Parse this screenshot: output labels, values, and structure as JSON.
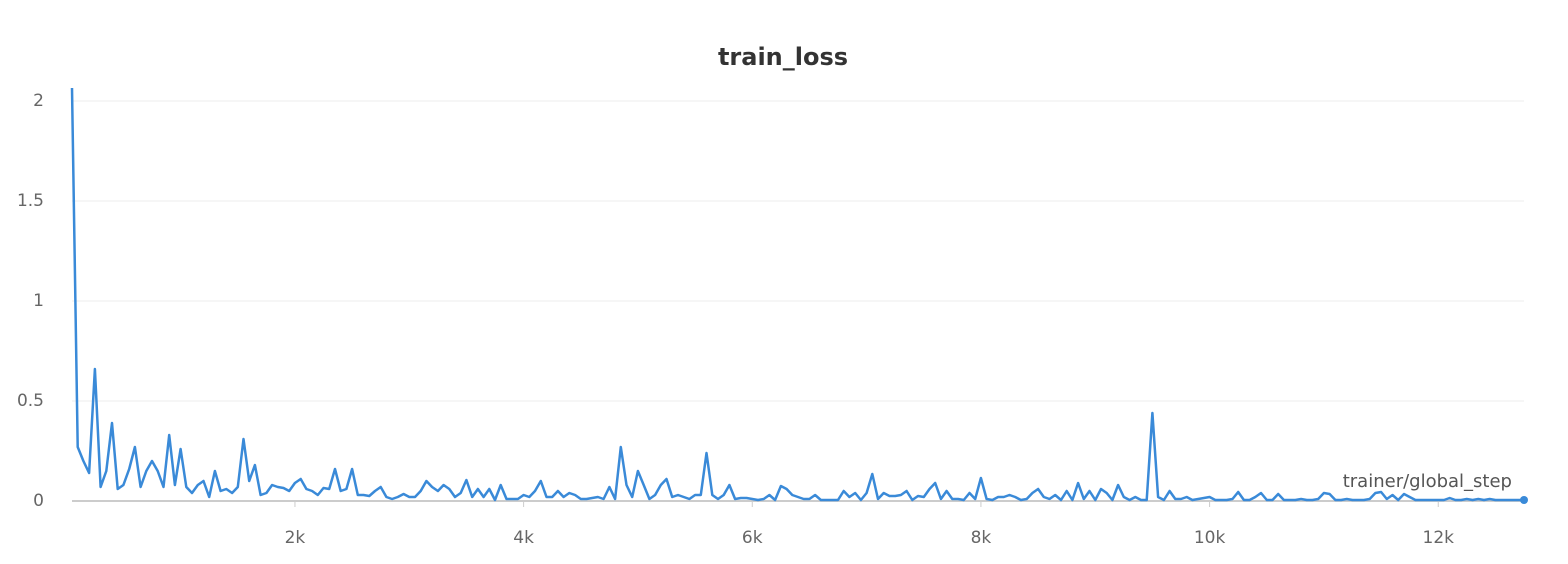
{
  "chart_data": {
    "type": "line",
    "title": "train_loss",
    "x_label": "trainer/global_step",
    "color": "#3a8ad8",
    "x": [
      50,
      100,
      150,
      200,
      250,
      300,
      350,
      400,
      450,
      500,
      550,
      600,
      650,
      700,
      750,
      800,
      850,
      900,
      950,
      1000,
      1050,
      1100,
      1150,
      1200,
      1250,
      1300,
      1350,
      1400,
      1450,
      1500,
      1550,
      1600,
      1650,
      1700,
      1750,
      1800,
      1850,
      1900,
      1950,
      2000,
      2050,
      2100,
      2150,
      2200,
      2250,
      2300,
      2350,
      2400,
      2450,
      2500,
      2550,
      2600,
      2650,
      2700,
      2750,
      2800,
      2850,
      2900,
      2950,
      3000,
      3050,
      3100,
      3150,
      3200,
      3250,
      3300,
      3350,
      3400,
      3450,
      3500,
      3550,
      3600,
      3650,
      3700,
      3750,
      3800,
      3850,
      3900,
      3950,
      4000,
      4050,
      4100,
      4150,
      4200,
      4250,
      4300,
      4350,
      4400,
      4450,
      4500,
      4550,
      4600,
      4650,
      4700,
      4750,
      4800,
      4850,
      4900,
      4950,
      5000,
      5050,
      5100,
      5150,
      5200,
      5250,
      5300,
      5350,
      5400,
      5450,
      5500,
      5550,
      5600,
      5650,
      5700,
      5750,
      5800,
      5850,
      5900,
      5950,
      6000,
      6050,
      6100,
      6150,
      6200,
      6250,
      6300,
      6350,
      6400,
      6450,
      6500,
      6550,
      6600,
      6650,
      6700,
      6750,
      6800,
      6850,
      6900,
      6950,
      7000,
      7050,
      7100,
      7150,
      7200,
      7250,
      7300,
      7350,
      7400,
      7450,
      7500,
      7550,
      7600,
      7650,
      7700,
      7750,
      7800,
      7850,
      7900,
      7950,
      8000,
      8050,
      8100,
      8150,
      8200,
      8250,
      8300,
      8350,
      8400,
      8450,
      8500,
      8550,
      8600,
      8650,
      8700,
      8750,
      8800,
      8850,
      8900,
      8950,
      9000,
      9050,
      9100,
      9150,
      9200,
      9250,
      9300,
      9350,
      9400,
      9450,
      9500,
      9550,
      9600,
      9650,
      9700,
      9750,
      9800,
      9850,
      9900,
      9950,
      10000,
      10050,
      10100,
      10150,
      10200,
      10250,
      10300,
      10350,
      10400,
      10450,
      10500,
      10550,
      10600,
      10650,
      10700,
      10750,
      10800,
      10850,
      10900,
      10950,
      11000,
      11050,
      11100,
      11150,
      11200,
      11250,
      11300,
      11350,
      11400,
      11450,
      11500,
      11550,
      11600,
      11650,
      11700,
      11750,
      11800,
      11850,
      11900,
      11950,
      12000,
      12050,
      12100,
      12150,
      12200,
      12250,
      12300,
      12350,
      12400,
      12450,
      12500,
      12550,
      12600,
      12650,
      12700,
      12750
    ],
    "values": [
      2.065,
      0.27,
      0.2,
      0.14,
      0.66,
      0.07,
      0.15,
      0.39,
      0.06,
      0.08,
      0.16,
      0.27,
      0.07,
      0.15,
      0.2,
      0.15,
      0.07,
      0.33,
      0.08,
      0.26,
      0.07,
      0.04,
      0.08,
      0.1,
      0.02,
      0.15,
      0.05,
      0.06,
      0.04,
      0.07,
      0.31,
      0.1,
      0.18,
      0.03,
      0.04,
      0.08,
      0.07,
      0.065,
      0.05,
      0.09,
      0.11,
      0.06,
      0.05,
      0.03,
      0.065,
      0.06,
      0.16,
      0.05,
      0.06,
      0.16,
      0.03,
      0.03,
      0.025,
      0.05,
      0.07,
      0.02,
      0.01,
      0.02,
      0.035,
      0.02,
      0.02,
      0.05,
      0.1,
      0.07,
      0.05,
      0.08,
      0.06,
      0.02,
      0.04,
      0.105,
      0.02,
      0.06,
      0.02,
      0.06,
      0.005,
      0.08,
      0.01,
      0.01,
      0.01,
      0.03,
      0.02,
      0.05,
      0.1,
      0.02,
      0.02,
      0.05,
      0.02,
      0.04,
      0.03,
      0.01,
      0.01,
      0.015,
      0.02,
      0.01,
      0.07,
      0.01,
      0.27,
      0.08,
      0.02,
      0.15,
      0.08,
      0.01,
      0.03,
      0.08,
      0.11,
      0.02,
      0.03,
      0.02,
      0.01,
      0.03,
      0.03,
      0.24,
      0.03,
      0.01,
      0.03,
      0.08,
      0.01,
      0.015,
      0.015,
      0.01,
      0.005,
      0.01,
      0.03,
      0.005,
      0.075,
      0.06,
      0.03,
      0.02,
      0.01,
      0.01,
      0.03,
      0.005,
      0.005,
      0.005,
      0.005,
      0.05,
      0.02,
      0.04,
      0.005,
      0.04,
      0.135,
      0.01,
      0.04,
      0.025,
      0.025,
      0.03,
      0.05,
      0.005,
      0.025,
      0.02,
      0.06,
      0.09,
      0.01,
      0.05,
      0.01,
      0.01,
      0.005,
      0.04,
      0.01,
      0.115,
      0.01,
      0.005,
      0.02,
      0.02,
      0.03,
      0.02,
      0.005,
      0.01,
      0.04,
      0.06,
      0.02,
      0.01,
      0.03,
      0.005,
      0.05,
      0.005,
      0.09,
      0.01,
      0.05,
      0.005,
      0.06,
      0.04,
      0.005,
      0.08,
      0.02,
      0.005,
      0.02,
      0.005,
      0.005,
      0.44,
      0.02,
      0.005,
      0.05,
      0.01,
      0.01,
      0.02,
      0.005,
      0.01,
      0.015,
      0.02,
      0.005,
      0.005,
      0.005,
      0.01,
      0.045,
      0.005,
      0.005,
      0.02,
      0.04,
      0.005,
      0.005,
      0.035,
      0.005,
      0.005,
      0.005,
      0.01,
      0.005,
      0.005,
      0.01,
      0.04,
      0.035,
      0.005,
      0.005,
      0.01,
      0.005,
      0.005,
      0.005,
      0.01,
      0.04,
      0.045,
      0.01,
      0.03,
      0.005,
      0.035,
      0.02,
      0.005,
      0.005,
      0.005,
      0.005,
      0.005,
      0.005,
      0.015,
      0.005,
      0.005,
      0.01,
      0.005,
      0.01,
      0.005,
      0.01,
      0.005,
      0.005,
      0.005,
      0.005,
      0.005,
      0.005
    ],
    "xlim": [
      50,
      12750
    ],
    "ylim": [
      0,
      2.07
    ],
    "xticks": [
      {
        "value": 2000,
        "label": "2k"
      },
      {
        "value": 4000,
        "label": "4k"
      },
      {
        "value": 6000,
        "label": "6k"
      },
      {
        "value": 8000,
        "label": "8k"
      },
      {
        "value": 10000,
        "label": "10k"
      },
      {
        "value": 12000,
        "label": "12k"
      }
    ],
    "yticks": [
      0,
      0.5,
      1,
      1.5,
      2
    ],
    "grid": true
  }
}
